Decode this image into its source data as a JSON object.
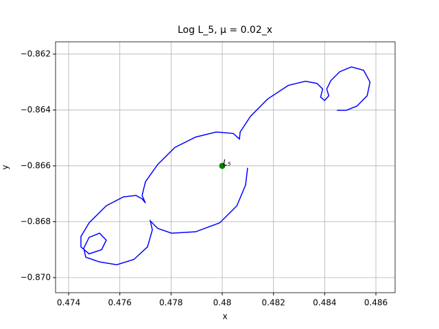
{
  "chart_data": {
    "type": "line",
    "title": "Log L_5, μ = 0.02_x",
    "x_label": "x",
    "y_label": "y",
    "x": [
      0.48099,
      0.48091,
      0.48057,
      0.4799,
      0.47896,
      0.47802,
      0.47748,
      0.47719,
      0.47727,
      0.47708,
      0.47655,
      0.47588,
      0.47521,
      0.47467,
      0.47459,
      0.4748,
      0.47521,
      0.47547,
      0.47529,
      0.4748,
      0.47448,
      0.47448,
      0.4748,
      0.47547,
      0.47614,
      0.47663,
      0.47687,
      0.477,
      0.47687,
      0.477,
      0.47748,
      0.47815,
      0.47896,
      0.47976,
      0.48043,
      0.48067,
      0.4807,
      0.4811,
      0.48177,
      0.48258,
      0.48325,
      0.4837,
      0.48392,
      0.48384,
      0.484,
      0.48416,
      0.48408,
      0.48424,
      0.48459,
      0.48504,
      0.48552,
      0.48577,
      0.48566,
      0.48526,
      0.48485,
      0.48448
    ],
    "values": [
      -0.86607,
      -0.86669,
      -0.86743,
      -0.86804,
      -0.86836,
      -0.86841,
      -0.86824,
      -0.86797,
      -0.86829,
      -0.8689,
      -0.86935,
      -0.86954,
      -0.86944,
      -0.86927,
      -0.86895,
      -0.86856,
      -0.86841,
      -0.86866,
      -0.869,
      -0.86915,
      -0.8689,
      -0.86853,
      -0.86804,
      -0.86743,
      -0.86711,
      -0.86706,
      -0.86718,
      -0.86733,
      -0.86706,
      -0.86657,
      -0.86595,
      -0.86534,
      -0.86497,
      -0.86479,
      -0.86484,
      -0.86504,
      -0.86479,
      -0.86423,
      -0.86361,
      -0.86312,
      -0.86297,
      -0.86305,
      -0.86325,
      -0.86354,
      -0.86366,
      -0.86349,
      -0.86325,
      -0.86295,
      -0.86263,
      -0.86246,
      -0.86258,
      -0.863,
      -0.86349,
      -0.86386,
      -0.86401,
      -0.86401
    ],
    "color": "#0000ff",
    "points": [
      {
        "x": 0.48,
        "y": -0.866,
        "label": "L₅",
        "color": "#008000"
      }
    ],
    "xlim": [
      0.47349,
      0.48675
    ],
    "xticks": [
      0.474,
      0.476,
      0.478,
      0.48,
      0.482,
      0.484,
      0.486
    ],
    "ylim": [
      -0.87054,
      -0.86156
    ],
    "yticks": [
      {
        "value": -0.87,
        "label": "−0.870"
      },
      {
        "value": -0.868,
        "label": "−0.868"
      },
      {
        "value": -0.866,
        "label": "−0.866"
      },
      {
        "value": -0.864,
        "label": "−0.864"
      },
      {
        "value": -0.862,
        "label": "−0.862"
      }
    ],
    "grid": true
  }
}
